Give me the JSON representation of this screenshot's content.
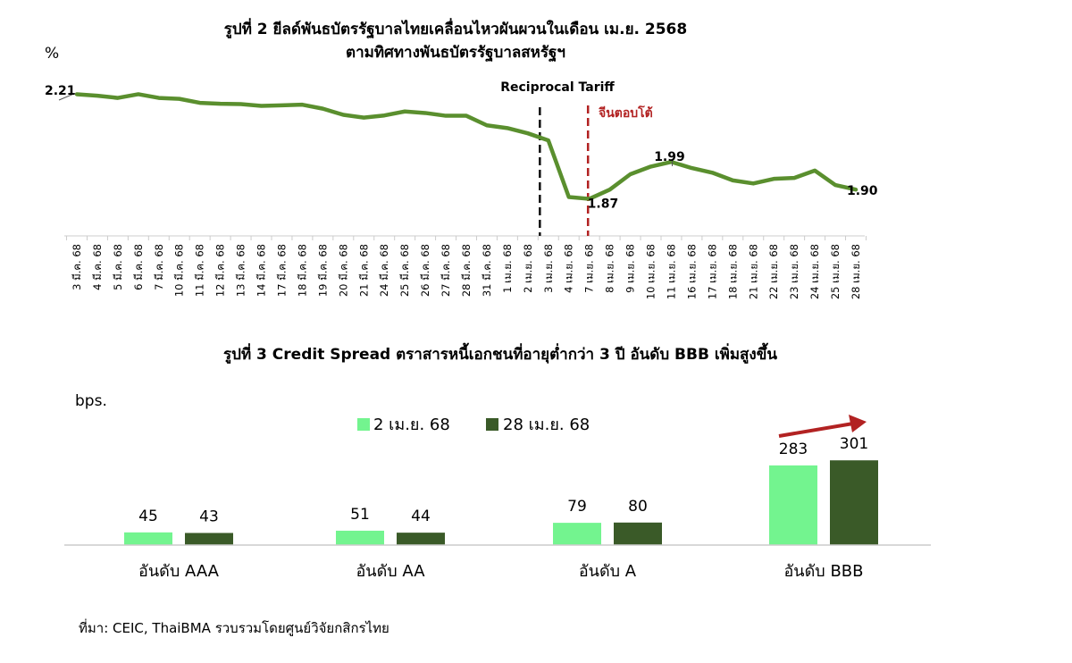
{
  "charts_meta": {
    "colors": {
      "line": "#5a8f2e",
      "bar_light": "#73f48f",
      "bar_dark": "#3a5a28",
      "marker_black": "#111111",
      "marker_red": "#b22222",
      "arrow": "#b22222",
      "axis": "#cccccc"
    }
  },
  "chart_data": [
    {
      "type": "line",
      "title": "รูปที่ 2 ยีลด์พันธบัตรรัฐบาลไทยเคลื่อนไหวผันผวนในเดือน เม.ย. 2568",
      "subtitle": "ตามทิศทางพันธบัตรรัฐบาลสหรัฐฯ",
      "ylabel": "%",
      "categories": [
        "3 มี.ค. 68",
        "4 มี.ค. 68",
        "5 มี.ค. 68",
        "6 มี.ค. 68",
        "7 มี.ค. 68",
        "10 มี.ค. 68",
        "11 มี.ค. 68",
        "12 มี.ค. 68",
        "13 มี.ค. 68",
        "14 มี.ค. 68",
        "17 มี.ค. 68",
        "18 มี.ค. 68",
        "19 มี.ค. 68",
        "20 มี.ค. 68",
        "21 มี.ค. 68",
        "24 มี.ค. 68",
        "25 มี.ค. 68",
        "26 มี.ค. 68",
        "27 มี.ค. 68",
        "28 มี.ค. 68",
        "31 มี.ค. 68",
        "1 เม.ย. 68",
        "2 เม.ย. 68",
        "3 เม.ย. 68",
        "4 เม.ย. 68",
        "7 เม.ย. 68",
        "8 เม.ย. 68",
        "9 เม.ย. 68",
        "10 เม.ย. 68",
        "11 เม.ย. 68",
        "16 เม.ย. 68",
        "17 เม.ย. 68",
        "18 เม.ย. 68",
        "21 เม.ย. 68",
        "22 เม.ย. 68",
        "23 เม.ย. 68",
        "24 เม.ย. 68",
        "25 เม.ย. 68",
        "28 เม.ย. 68"
      ],
      "values": [
        2.21,
        2.205,
        2.198,
        2.21,
        2.198,
        2.195,
        2.182,
        2.179,
        2.178,
        2.172,
        2.174,
        2.176,
        2.163,
        2.143,
        2.134,
        2.141,
        2.154,
        2.149,
        2.14,
        2.14,
        2.109,
        2.1,
        2.083,
        2.06,
        1.876,
        1.87,
        1.9,
        1.95,
        1.975,
        1.99,
        1.97,
        1.955,
        1.93,
        1.92,
        1.935,
        1.938,
        1.962,
        1.915,
        1.9
      ],
      "ylim": [
        1.5,
        2.4
      ],
      "annotations": {
        "first": "2.21",
        "low": "1.87",
        "mid": "1.99",
        "last": "1.90",
        "marker1_label": "Reciprocal Tariff",
        "marker2_label": "จีนตอบโต้"
      }
    },
    {
      "type": "bar",
      "title": "รูปที่ 3 Credit Spread ตราสารหนี้เอกชนที่อายุต่ำกว่า 3 ปี อันดับ BBB เพิ่มสูงขึ้น",
      "ylabel": "bps.",
      "categories": [
        "อันดับ AAA",
        "อันดับ AA",
        "อันดับ A",
        "อันดับ BBB"
      ],
      "series": [
        {
          "name": "2 เม.ย. 68",
          "values": [
            45,
            51,
            79,
            283
          ]
        },
        {
          "name": "28 เม.ย. 68",
          "values": [
            43,
            44,
            80,
            301
          ]
        }
      ],
      "legend": "top-center"
    }
  ],
  "source": "ที่มา: CEIC, ThaiBMA รวบรวมโดยศูนย์วิจัยกสิกรไทย"
}
